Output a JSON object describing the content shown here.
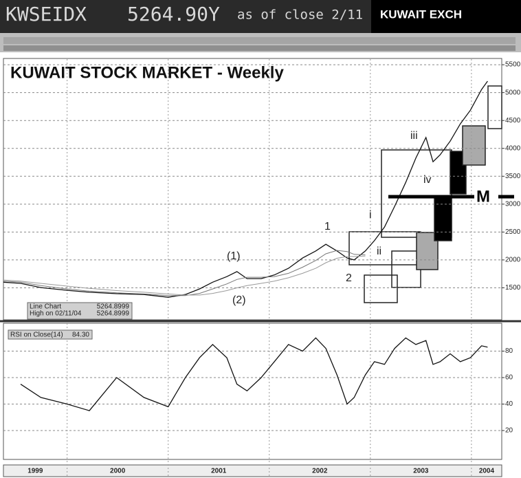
{
  "header": {
    "ticker": "KWSEIDX",
    "price": "5264.90Y",
    "asof": "as of close 2/11",
    "exchange": "KUWAIT EXCH"
  },
  "chart_data": [
    {
      "type": "line",
      "title": "KUWAIT STOCK MARKET - Weekly",
      "x": [
        1999.37,
        1999.54,
        1999.74,
        2000.0,
        2000.22,
        2000.49,
        2000.76,
        2001.0,
        2001.17,
        2001.31,
        2001.44,
        2001.58,
        2001.68,
        2001.78,
        2001.92,
        2002.05,
        2002.19,
        2002.33,
        2002.46,
        2002.56,
        2002.67,
        2002.77,
        2002.84,
        2002.95,
        2003.04,
        2003.14,
        2003.24,
        2003.35,
        2003.45,
        2003.55,
        2003.62,
        2003.69,
        2003.79,
        2003.89,
        2003.99,
        2004.1,
        2004.16
      ],
      "series": [
        {
          "name": "Line Chart",
          "color": "#111111",
          "values": [
            1600,
            1580,
            1505,
            1455,
            1420,
            1395,
            1380,
            1330,
            1380,
            1480,
            1600,
            1700,
            1790,
            1665,
            1665,
            1730,
            1850,
            2035,
            2160,
            2280,
            2160,
            2035,
            2000,
            2160,
            2345,
            2590,
            2960,
            3390,
            3825,
            4195,
            3760,
            3885,
            4130,
            4440,
            4685,
            5055,
            5205
          ]
        },
        {
          "color": "#777777",
          "values": [
            1620,
            1600,
            1540,
            1480,
            1440,
            1410,
            1390,
            1360,
            1360,
            1400,
            1480,
            1570,
            1650,
            1690,
            1690,
            1700,
            1760,
            1870,
            1990,
            2110,
            2170,
            2150,
            2100,
            2090,
            null,
            null,
            null,
            null,
            null,
            null,
            null,
            null,
            null,
            null,
            null,
            null,
            null
          ]
        },
        {
          "color": "#999999",
          "values": [
            1640,
            1620,
            1580,
            1530,
            1490,
            1450,
            1420,
            1390,
            1370,
            1370,
            1400,
            1450,
            1500,
            1540,
            1580,
            1620,
            1680,
            1760,
            1850,
            1950,
            2030,
            2060,
            2060,
            2070,
            null,
            null,
            null,
            null,
            null,
            null,
            null,
            null,
            null,
            null,
            null,
            null,
            null
          ]
        }
      ],
      "xlim": [
        1999.37,
        2004.3
      ],
      "xticks": [
        2000,
        2001,
        2002,
        2003,
        2004
      ],
      "x_labels": [
        "1999",
        "2000",
        "2001",
        "2002",
        "2003",
        "2004"
      ],
      "ylim": [
        1000,
        5600
      ],
      "yticks": [
        1500,
        2000,
        2500,
        3000,
        3500,
        4000,
        4500,
        5000,
        5500
      ],
      "grid": true,
      "annotations": [
        "(1)",
        "(2)",
        "1",
        "2",
        "i",
        "ii",
        "iii",
        "iv",
        "M"
      ],
      "info_box": [
        [
          "Line Chart",
          "5264.8999"
        ],
        [
          "High on  02/11/04",
          "5264.8999"
        ]
      ]
    },
    {
      "type": "line",
      "title": "RSI on Close(14)",
      "last": "84.30",
      "x": [
        1999.37,
        1999.54,
        1999.74,
        2000.0,
        2000.22,
        2000.49,
        2000.76,
        2001.0,
        2001.17,
        2001.31,
        2001.44,
        2001.58,
        2001.68,
        2001.78,
        2001.92,
        2002.05,
        2002.19,
        2002.33,
        2002.46,
        2002.56,
        2002.67,
        2002.77,
        2002.84,
        2002.95,
        2003.04,
        2003.14,
        2003.24,
        2003.35,
        2003.45,
        2003.55,
        2003.62,
        2003.69,
        2003.79,
        2003.89,
        2003.99,
        2004.1,
        2004.16
      ],
      "series": [
        {
          "color": "#111111",
          "values": [
            null,
            55,
            45,
            40,
            35,
            60,
            45,
            38,
            60,
            75,
            85,
            75,
            55,
            50,
            60,
            72,
            85,
            80,
            90,
            82,
            62,
            40,
            45,
            62,
            72,
            70,
            82,
            90,
            85,
            88,
            70,
            72,
            78,
            72,
            75,
            84,
            83
          ]
        }
      ],
      "xlim": [
        1999.37,
        2004.3
      ],
      "ylim": [
        0,
        100
      ],
      "yticks": [
        20,
        40,
        60,
        80
      ],
      "grid": true
    }
  ]
}
